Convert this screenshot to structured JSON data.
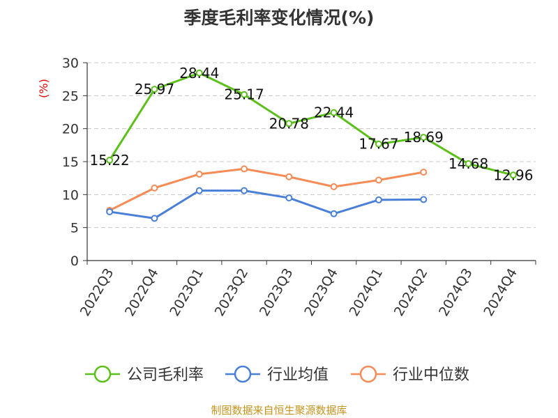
{
  "chart_data": {
    "type": "line",
    "title": "季度毛利率变化情况(%)",
    "ylabel": "(%)",
    "xlabel": "",
    "categories": [
      "2022Q3",
      "2022Q4",
      "2023Q1",
      "2023Q2",
      "2023Q3",
      "2023Q4",
      "2024Q1",
      "2024Q2",
      "2024Q3",
      "2024Q4"
    ],
    "ylim": [
      0,
      30
    ],
    "yticks": [
      0,
      5,
      10,
      15,
      20,
      25,
      30
    ],
    "grid": true,
    "legend_position": "bottom",
    "series": [
      {
        "name": "公司毛利率",
        "color": "#5cc01a",
        "values": [
          15.22,
          25.97,
          28.44,
          25.17,
          20.78,
          22.44,
          17.67,
          18.69,
          14.68,
          12.96
        ],
        "labels": [
          "15.22",
          "25.97",
          "28.44",
          "25.17",
          "20.78",
          "22.44",
          "17.67",
          "18.69",
          "14.68",
          "12.96"
        ],
        "show_labels": true
      },
      {
        "name": "行业均值",
        "color": "#4a7fd8",
        "values": [
          7.4,
          6.4,
          10.6,
          10.6,
          9.5,
          7.1,
          9.2,
          9.25,
          null,
          null
        ],
        "show_labels": false
      },
      {
        "name": "行业中位数",
        "color": "#f68b55",
        "values": [
          7.6,
          11.0,
          13.1,
          13.9,
          12.7,
          11.2,
          12.2,
          13.4,
          null,
          null
        ],
        "show_labels": false
      }
    ]
  },
  "footer": {
    "source": "制图数据来自恒生聚源数据库"
  }
}
